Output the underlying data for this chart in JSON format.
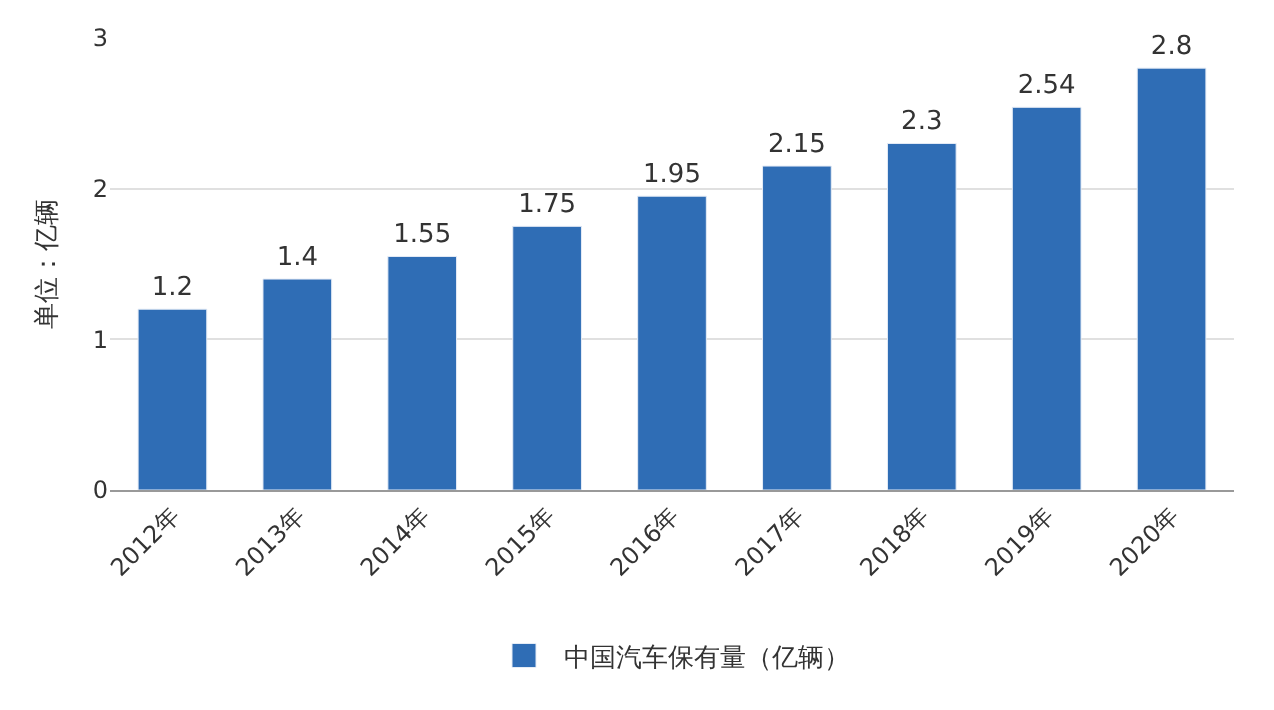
{
  "chart_data": {
    "type": "bar",
    "ylabel": "单位：亿辆",
    "categories": [
      "2012年",
      "2013年",
      "2014年",
      "2015年",
      "2016年",
      "2017年",
      "2018年",
      "2019年",
      "2020年"
    ],
    "series": [
      {
        "name": "中国汽车保有量（亿辆）",
        "color": "#2f6db5",
        "values": [
          1.2,
          1.4,
          1.55,
          1.75,
          1.95,
          2.15,
          2.3,
          2.54,
          2.8
        ]
      }
    ],
    "ylim": [
      0,
      3
    ],
    "yticks": [
      0,
      1,
      2,
      3
    ],
    "grid": "y",
    "legend": "bottom",
    "data_labels": true
  }
}
